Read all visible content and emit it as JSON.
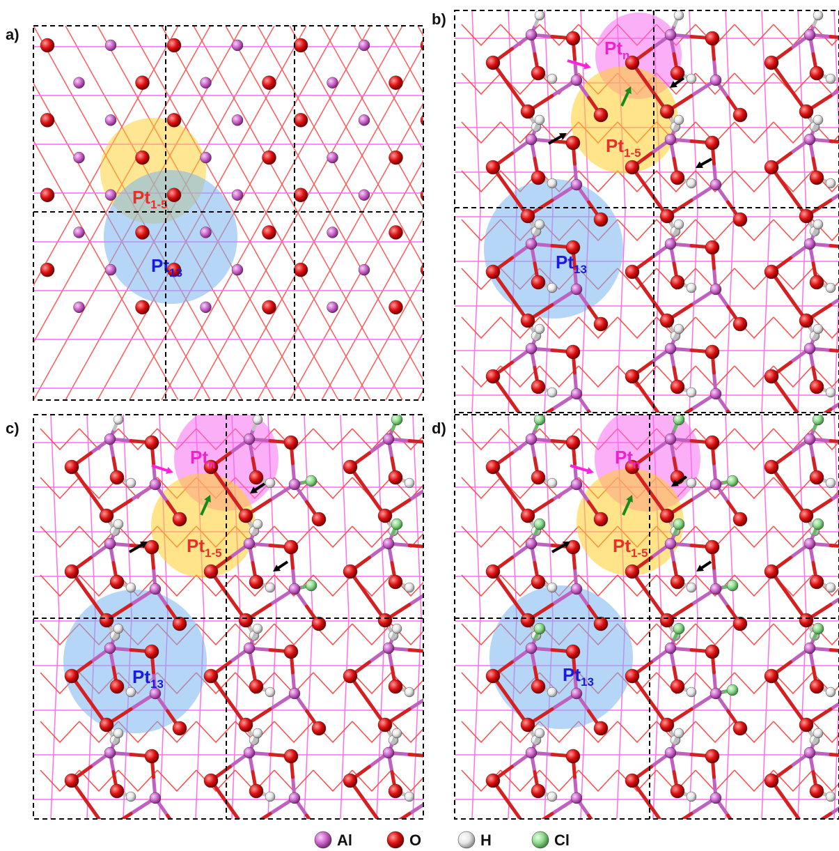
{
  "panels": [
    {
      "label": "a)",
      "surface": "dry",
      "sites": [
        {
          "main": "Pt",
          "sub": "1-5",
          "color": "#e8302a",
          "zone": "yellow"
        },
        {
          "main": "Pt",
          "sub": "13",
          "color": "#1a1ae0",
          "zone": "blue"
        }
      ]
    },
    {
      "label": "b)",
      "surface": "hydroxylated",
      "sites": [
        {
          "main": "Pt",
          "sub": "n",
          "color": "#ee22cc",
          "zone": "pink"
        },
        {
          "main": "Pt",
          "sub": "1-5",
          "color": "#e8302a",
          "zone": "yellow"
        },
        {
          "main": "Pt",
          "sub": "13",
          "color": "#1a1ae0",
          "zone": "blue"
        }
      ]
    },
    {
      "label": "c)",
      "surface": "partially-chlorinated",
      "sites": [
        {
          "main": "Pt",
          "sub": "n",
          "color": "#ee22cc",
          "zone": "pink"
        },
        {
          "main": "Pt",
          "sub": "1-5",
          "color": "#e8302a",
          "zone": "yellow"
        },
        {
          "main": "Pt",
          "sub": "13",
          "color": "#1a1ae0",
          "zone": "blue"
        }
      ]
    },
    {
      "label": "d)",
      "surface": "chlorinated",
      "sites": [
        {
          "main": "Pt",
          "sub": "n",
          "color": "#ee22cc",
          "zone": "pink"
        },
        {
          "main": "Pt",
          "sub": "1-5",
          "color": "#e8302a",
          "zone": "yellow"
        },
        {
          "main": "Pt",
          "sub": "13",
          "color": "#1a1ae0",
          "zone": "blue"
        }
      ]
    }
  ],
  "arrow_colors": {
    "pink": "#ff22dd",
    "green": "#1a8a1a",
    "black": "#000000"
  },
  "legend": [
    {
      "symbol": "Al",
      "color": "#cc66cc"
    },
    {
      "symbol": "O",
      "color": "#dd1111"
    },
    {
      "symbol": "H",
      "color": "#e8e8e8"
    },
    {
      "symbol": "Cl",
      "color": "#8ed98e"
    }
  ]
}
